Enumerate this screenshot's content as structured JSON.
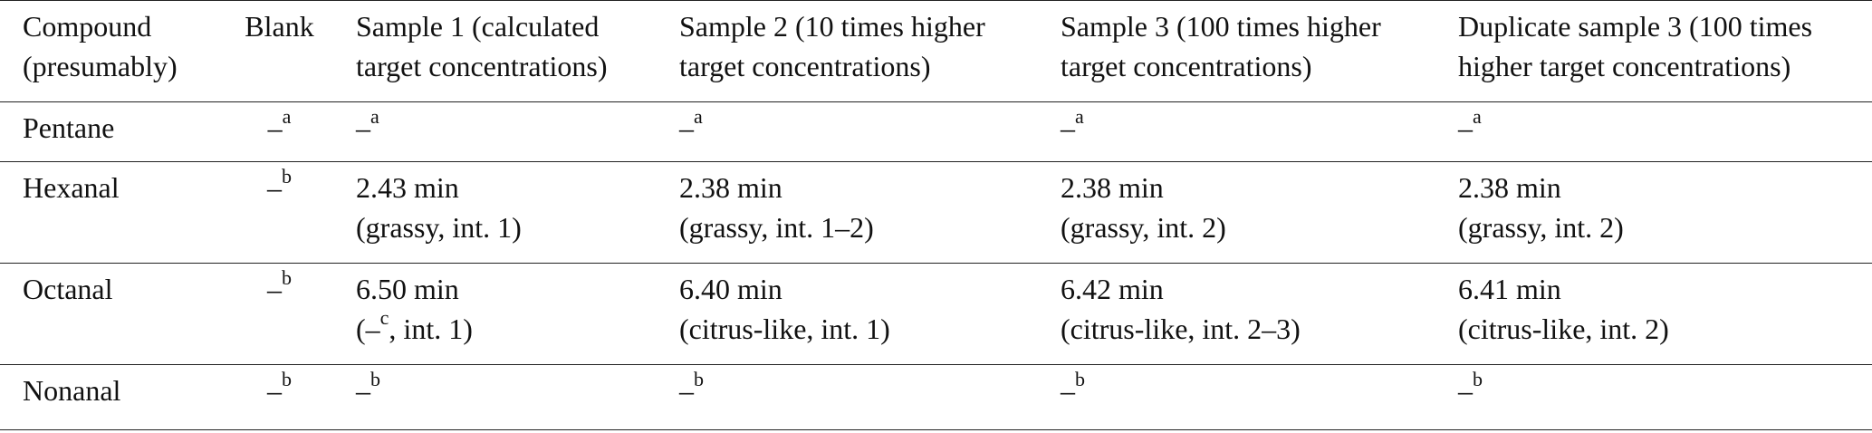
{
  "table": {
    "header": [
      [
        "Compound",
        "(presumably)"
      ],
      [
        "Blank"
      ],
      [
        "Sample 1 (calculated",
        "target concentrations)"
      ],
      [
        "Sample 2 (10 times higher",
        "target concentrations)"
      ],
      [
        "Sample 3 (100 times higher",
        "target concentrations)"
      ],
      [
        "Duplicate sample 3 (100 times",
        "higher target concentrations)"
      ]
    ],
    "rows": [
      [
        [
          [
            "Pentane"
          ]
        ],
        [
          [
            "–",
            {
              "sup": "a"
            }
          ]
        ],
        [
          [
            "–",
            {
              "sup": "a"
            }
          ]
        ],
        [
          [
            "–",
            {
              "sup": "a"
            }
          ]
        ],
        [
          [
            "–",
            {
              "sup": "a"
            }
          ]
        ],
        [
          [
            "–",
            {
              "sup": "a"
            }
          ]
        ]
      ],
      [
        [
          [
            "Hexanal"
          ]
        ],
        [
          [
            "–",
            {
              "sup": "b"
            }
          ]
        ],
        [
          [
            "2.43 min"
          ],
          [
            "(grassy, int. 1)"
          ]
        ],
        [
          [
            "2.38 min"
          ],
          [
            "(grassy, int. 1–2)"
          ]
        ],
        [
          [
            "2.38 min"
          ],
          [
            "(grassy, int. 2)"
          ]
        ],
        [
          [
            "2.38 min"
          ],
          [
            "(grassy, int. 2)"
          ]
        ]
      ],
      [
        [
          [
            "Octanal"
          ]
        ],
        [
          [
            "–",
            {
              "sup": "b"
            }
          ]
        ],
        [
          [
            "6.50 min"
          ],
          [
            "(–",
            {
              "sup": "c"
            },
            ", int. 1)"
          ]
        ],
        [
          [
            "6.40 min"
          ],
          [
            "(citrus-like, int. 1)"
          ]
        ],
        [
          [
            "6.42 min"
          ],
          [
            "(citrus-like, int. 2–3)"
          ]
        ],
        [
          [
            "6.41 min"
          ],
          [
            "(citrus-like, int. 2)"
          ]
        ]
      ],
      [
        [
          [
            "Nonanal"
          ]
        ],
        [
          [
            "–",
            {
              "sup": "b"
            }
          ]
        ],
        [
          [
            "–",
            {
              "sup": "b"
            }
          ]
        ],
        [
          [
            "–",
            {
              "sup": "b"
            }
          ]
        ],
        [
          [
            "–",
            {
              "sup": "b"
            }
          ]
        ],
        [
          [
            "–",
            {
              "sup": "b"
            }
          ]
        ]
      ]
    ]
  }
}
